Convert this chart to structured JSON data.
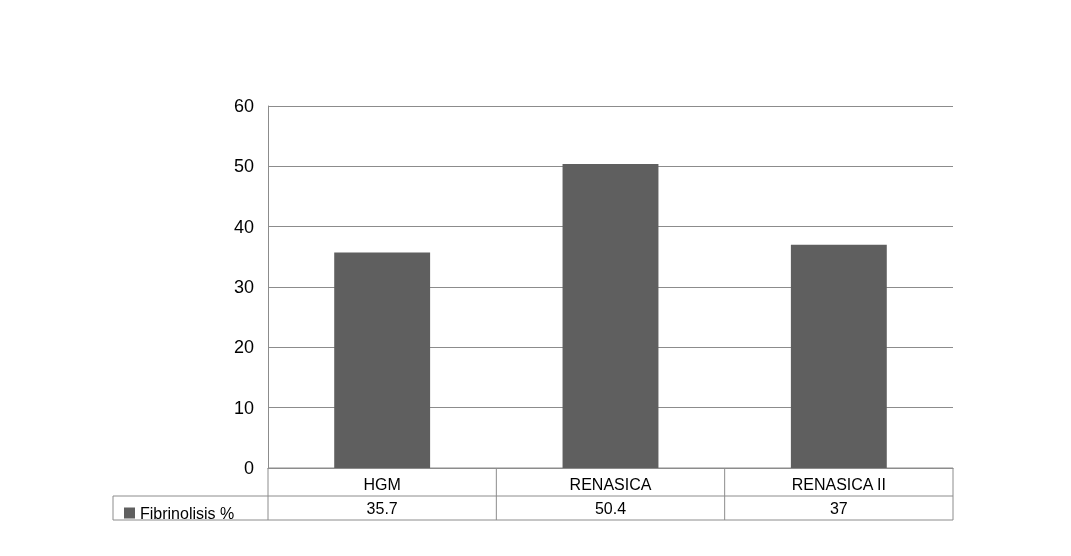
{
  "chart_data": {
    "type": "bar",
    "categories": [
      "HGM",
      "RENASICA",
      "RENASICA II"
    ],
    "series": [
      {
        "name": "Fibrinolisis %",
        "color": "#5f5f5f",
        "values": [
          35.7,
          50.4,
          37
        ]
      }
    ],
    "ylim": [
      0,
      60
    ],
    "yticks": [
      0,
      10,
      20,
      30,
      40,
      50,
      60
    ],
    "grid": "y",
    "legend": "bottom left",
    "data_labels": true
  }
}
